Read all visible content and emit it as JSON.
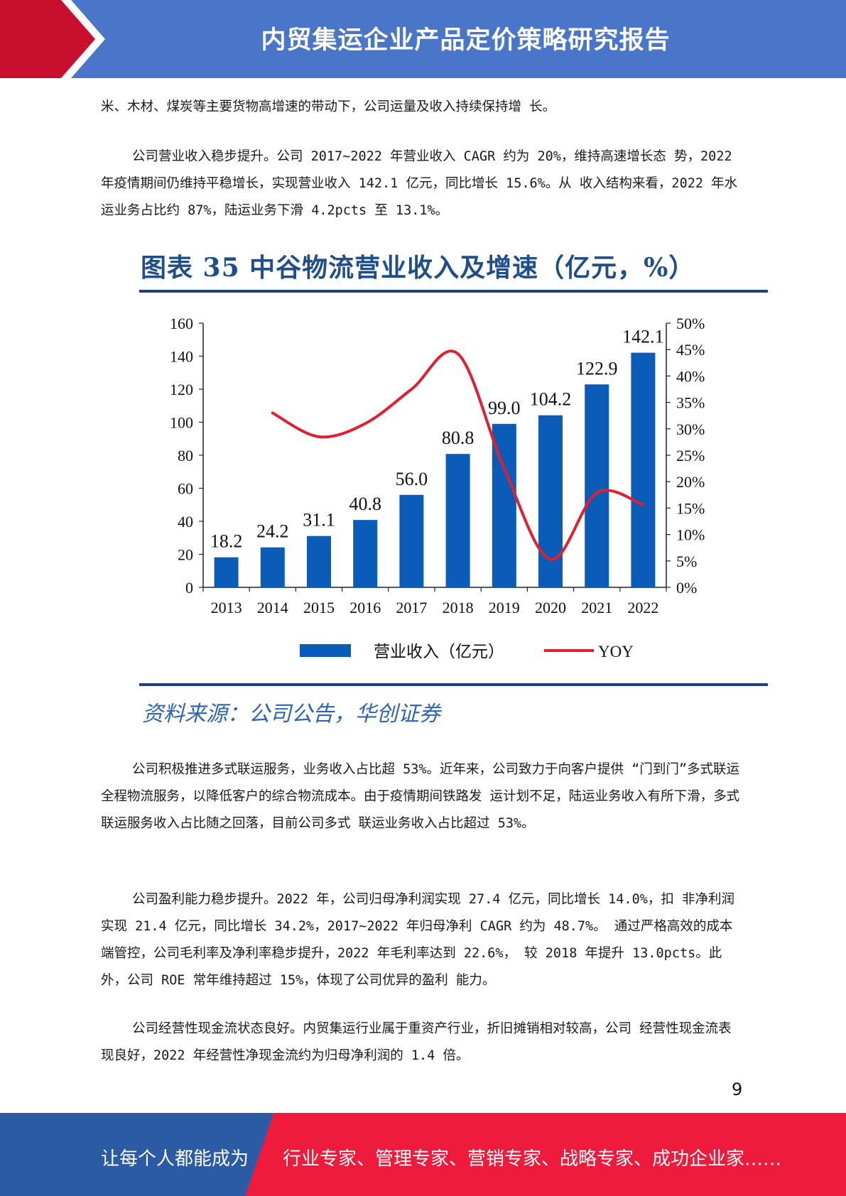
{
  "header": {
    "title": "内贸集运企业产品定价策略研究报告"
  },
  "paragraphs": {
    "p1": "米、木材、煤炭等主要货物高增速的带动下，公司运量及收入持续保持增 长。",
    "p2": "公司营业收入稳步提升。公司 2017~2022 年营业收入 CAGR 约为 20%，维持高速增长态 势，2022 年疫情期间仍维持平稳增长，实现营业收入 142.1 亿元，同比增长 15.6%。从 收入结构来看，2022 年水运业务占比约 87%，陆运业务下滑 4.2pcts 至 13.1%。",
    "p3": "公司积极推进多式联运服务，业务收入占比超 53%。近年来，公司致力于向客户提供 “门到门”多式联运全程物流服务，以降低客户的综合物流成本。由于疫情期间铁路发 运计划不足，陆运业务收入有所下滑，多式联运服务收入占比随之回落，目前公司多式 联运业务收入占比超过 53%。",
    "p4": "公司盈利能力稳步提升。2022 年，公司归母净利润实现 27.4 亿元，同比增长 14.0%，扣 非净利润实现 21.4 亿元，同比增长 34.2%，2017~2022 年归母净利 CAGR 约为 48.7%。 通过严格高效的成本端管控，公司毛利率及净利率稳步提升，2022 年毛利率达到 22.6%， 较 2018 年提升 13.0pcts。此外，公司 ROE 常年维持超过 15%，体现了公司优异的盈利 能力。",
    "p5": "公司经营性现金流状态良好。内贸集运行业属于重资产行业，折旧摊销相对较高，公司 经营性现金流表现良好，2022 年经营性净现金流约为归母净利润的 1.4 倍。"
  },
  "chart_title": "图表 35 中谷物流营业收入及增速（亿元，%）",
  "source": "资料来源：公司公告，华创证券",
  "chart_data": {
    "type": "bar",
    "categories": [
      "2013",
      "2014",
      "2015",
      "2016",
      "2017",
      "2018",
      "2019",
      "2020",
      "2021",
      "2022"
    ],
    "series": [
      {
        "name": "营业收入（亿元）",
        "type": "bar",
        "axis": "left",
        "values": [
          18.2,
          24.2,
          31.1,
          40.8,
          56.0,
          80.8,
          99.0,
          104.2,
          122.9,
          142.1
        ],
        "labels": [
          "18.2",
          "24.2",
          "31.1",
          "40.8",
          "56.0",
          "80.8",
          "99.0",
          "104.2",
          "122.9",
          "142.1"
        ]
      },
      {
        "name": "YOY",
        "type": "line",
        "axis": "right",
        "values": [
          null,
          33.0,
          28.5,
          31.0,
          37.5,
          44.2,
          22.5,
          5.3,
          17.9,
          15.6
        ]
      }
    ],
    "ylim": [
      0,
      160
    ],
    "yticks": [
      "0",
      "20",
      "40",
      "60",
      "80",
      "100",
      "120",
      "140",
      "160"
    ],
    "y2lim": [
      0,
      50
    ],
    "y2ticks": [
      "0%",
      "5%",
      "10%",
      "15%",
      "20%",
      "25%",
      "30%",
      "35%",
      "40%",
      "45%",
      "50%"
    ],
    "legend_position": "bottom",
    "colors": {
      "bar": "#0a5cb8",
      "line": "#e0202e"
    },
    "xlabel": "",
    "ylabel": ""
  },
  "page_number": "9",
  "footer": {
    "left": "让每个人都能成为",
    "right": "行业专家、管理专家、营销专家、战略专家、成功企业家……"
  },
  "colors": {
    "header_blue": "#4a76c9",
    "header_red": "#c8102e",
    "footer_blue": "#2b5ba4",
    "footer_red": "#ef1b3c"
  }
}
